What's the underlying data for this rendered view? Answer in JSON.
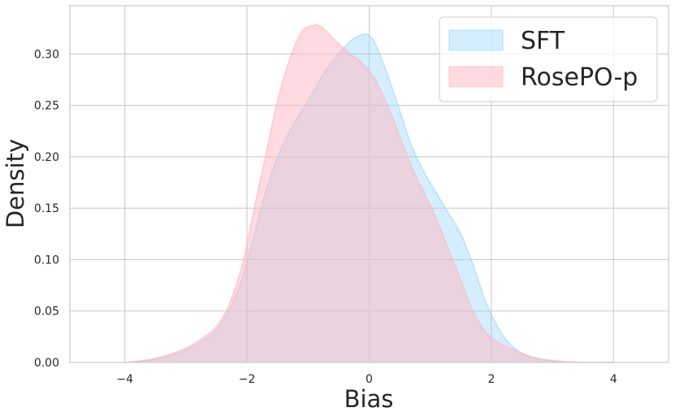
{
  "chart_data": {
    "type": "area",
    "xlabel": "Bias",
    "ylabel": "Density",
    "xlim": [
      -4.9,
      4.9
    ],
    "ylim": [
      0,
      0.347
    ],
    "xticks": [
      -4,
      -2,
      0,
      2,
      4
    ],
    "xtick_labels": [
      "−4",
      "−2",
      "0",
      "2",
      "4"
    ],
    "yticks": [
      0.0,
      0.05,
      0.1,
      0.15,
      0.2,
      0.25,
      0.3
    ],
    "ytick_labels": [
      "0.00",
      "0.05",
      "0.10",
      "0.15",
      "0.20",
      "0.25",
      "0.30"
    ],
    "grid": true,
    "legend_position": "top-right",
    "series": [
      {
        "name": "SFT",
        "color": "#87CEFA",
        "x": [
          -4.0,
          -3.5,
          -3.0,
          -2.7,
          -2.5,
          -2.3,
          -2.1,
          -2.0,
          -1.9,
          -1.7,
          -1.5,
          -1.3,
          -1.1,
          -0.9,
          -0.7,
          -0.5,
          -0.3,
          -0.1,
          0.0,
          0.1,
          0.3,
          0.5,
          0.7,
          0.9,
          1.1,
          1.3,
          1.5,
          1.7,
          1.9,
          2.1,
          2.3,
          2.5,
          2.7,
          3.0,
          3.5,
          4.0
        ],
        "y": [
          0.0,
          0.003,
          0.012,
          0.022,
          0.032,
          0.05,
          0.078,
          0.098,
          0.12,
          0.165,
          0.2,
          0.225,
          0.245,
          0.265,
          0.285,
          0.3,
          0.313,
          0.319,
          0.318,
          0.31,
          0.28,
          0.245,
          0.21,
          0.185,
          0.165,
          0.145,
          0.125,
          0.095,
          0.06,
          0.035,
          0.018,
          0.009,
          0.004,
          0.001,
          0.0,
          0.0
        ]
      },
      {
        "name": "RosePO-p",
        "color": "#FFB6C1",
        "x": [
          -4.0,
          -3.5,
          -3.0,
          -2.7,
          -2.5,
          -2.3,
          -2.1,
          -2.0,
          -1.9,
          -1.7,
          -1.5,
          -1.3,
          -1.1,
          -0.9,
          -0.8,
          -0.7,
          -0.5,
          -0.3,
          -0.1,
          0.1,
          0.3,
          0.5,
          0.7,
          0.9,
          1.1,
          1.3,
          1.5,
          1.7,
          1.9,
          2.1,
          2.3,
          2.5,
          2.7,
          3.0,
          3.5,
          4.0
        ],
        "y": [
          0.0,
          0.004,
          0.014,
          0.025,
          0.035,
          0.055,
          0.09,
          0.115,
          0.145,
          0.2,
          0.255,
          0.295,
          0.322,
          0.328,
          0.327,
          0.322,
          0.31,
          0.3,
          0.29,
          0.275,
          0.25,
          0.22,
          0.19,
          0.165,
          0.14,
          0.11,
          0.08,
          0.05,
          0.03,
          0.02,
          0.014,
          0.009,
          0.005,
          0.002,
          0.0,
          0.0
        ]
      }
    ]
  }
}
